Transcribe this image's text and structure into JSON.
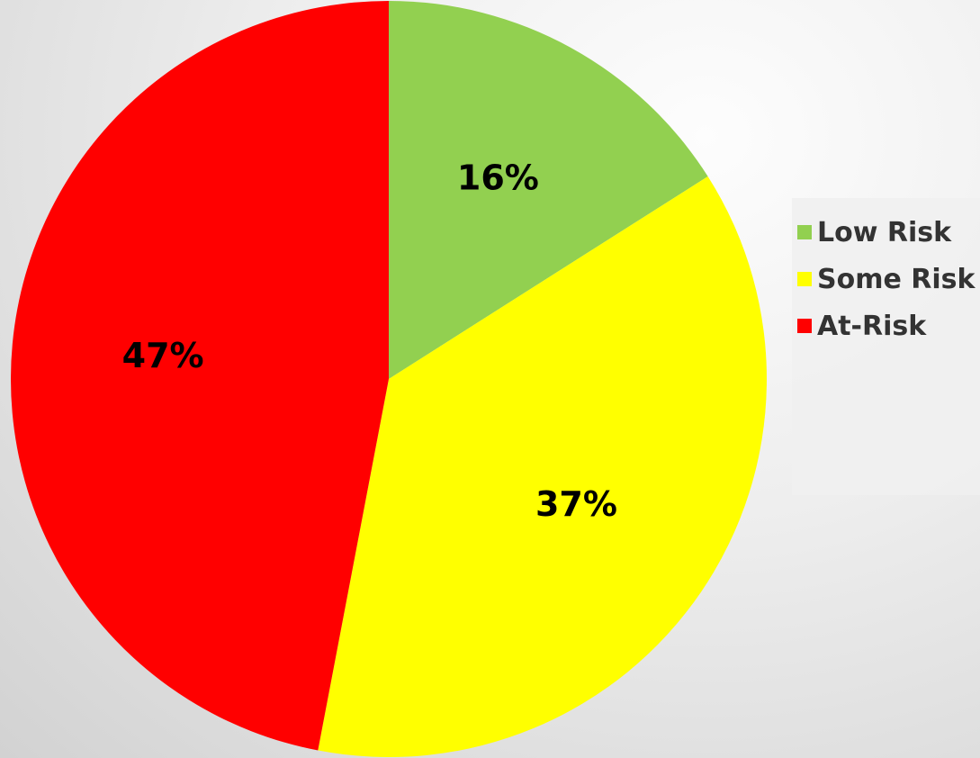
{
  "chart_data": {
    "type": "pie",
    "title": "",
    "categories": [
      "Low Risk",
      "Some Risk",
      "At-Risk"
    ],
    "values": [
      16,
      37,
      47
    ],
    "labels": [
      "16%",
      "37%",
      "47%"
    ],
    "colors": [
      "#92d050",
      "#ffff00",
      "#ff0000"
    ],
    "start_angle": "12 o'clock",
    "direction": "clockwise",
    "legend_position": "right"
  },
  "legend": {
    "items": [
      {
        "label": "Low Risk",
        "color": "#92d050"
      },
      {
        "label": "Some Risk",
        "color": "#ffff00"
      },
      {
        "label": "At-Risk",
        "color": "#ff0000"
      }
    ]
  }
}
